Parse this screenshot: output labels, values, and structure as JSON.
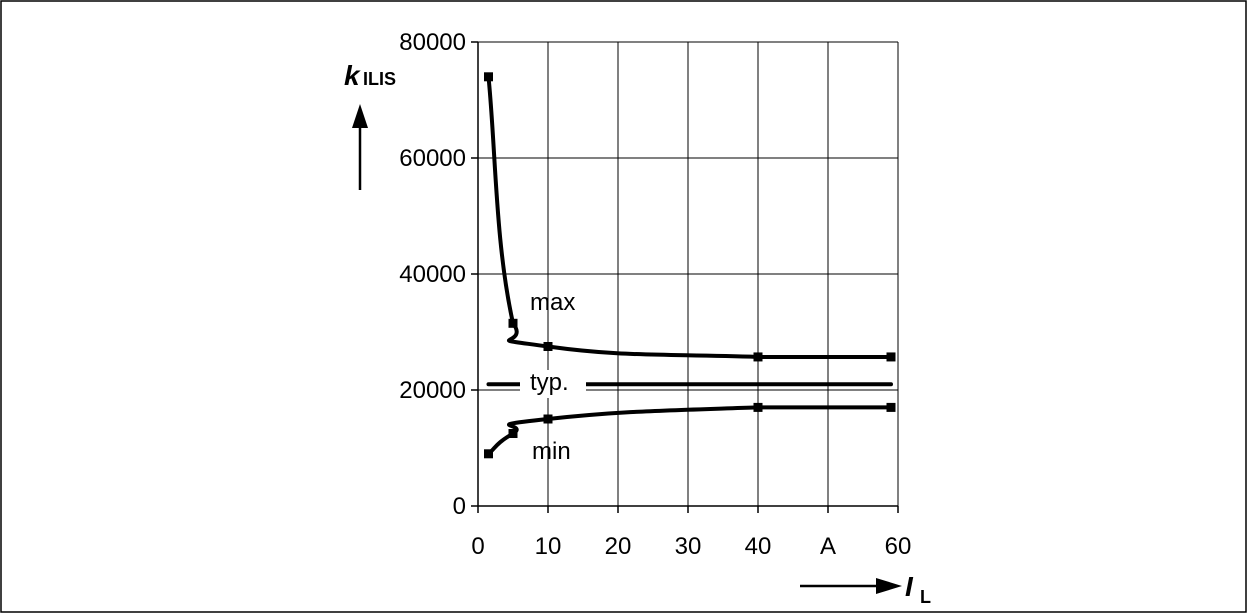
{
  "chart_data": {
    "type": "line",
    "title": "",
    "x_ticks": [
      "0",
      "10",
      "20",
      "30",
      "40",
      "A",
      "60"
    ],
    "x_tick_values": [
      0,
      10,
      20,
      30,
      40,
      50,
      60
    ],
    "y_ticks": [
      "0",
      "20000",
      "40000",
      "60000",
      "80000"
    ],
    "y_tick_values": [
      0,
      20000,
      40000,
      60000,
      80000
    ],
    "xlim": [
      0,
      60
    ],
    "ylim": [
      0,
      80000
    ],
    "grid": true,
    "xlabel": {
      "symbol": "I",
      "subscript": "L"
    },
    "ylabel": {
      "symbol": "k",
      "subscript": "ILIS"
    },
    "series": [
      {
        "name": "max",
        "x": [
          1.5,
          5,
          10,
          40,
          59
        ],
        "y": [
          74000,
          31500,
          27500,
          25700,
          25700
        ]
      },
      {
        "name": "typ.",
        "x": [
          1.5,
          59
        ],
        "y": [
          21000,
          21000
        ]
      },
      {
        "name": "min",
        "x": [
          1.5,
          5,
          10,
          40,
          59
        ],
        "y": [
          9000,
          12500,
          15000,
          17000,
          17000
        ]
      }
    ]
  }
}
